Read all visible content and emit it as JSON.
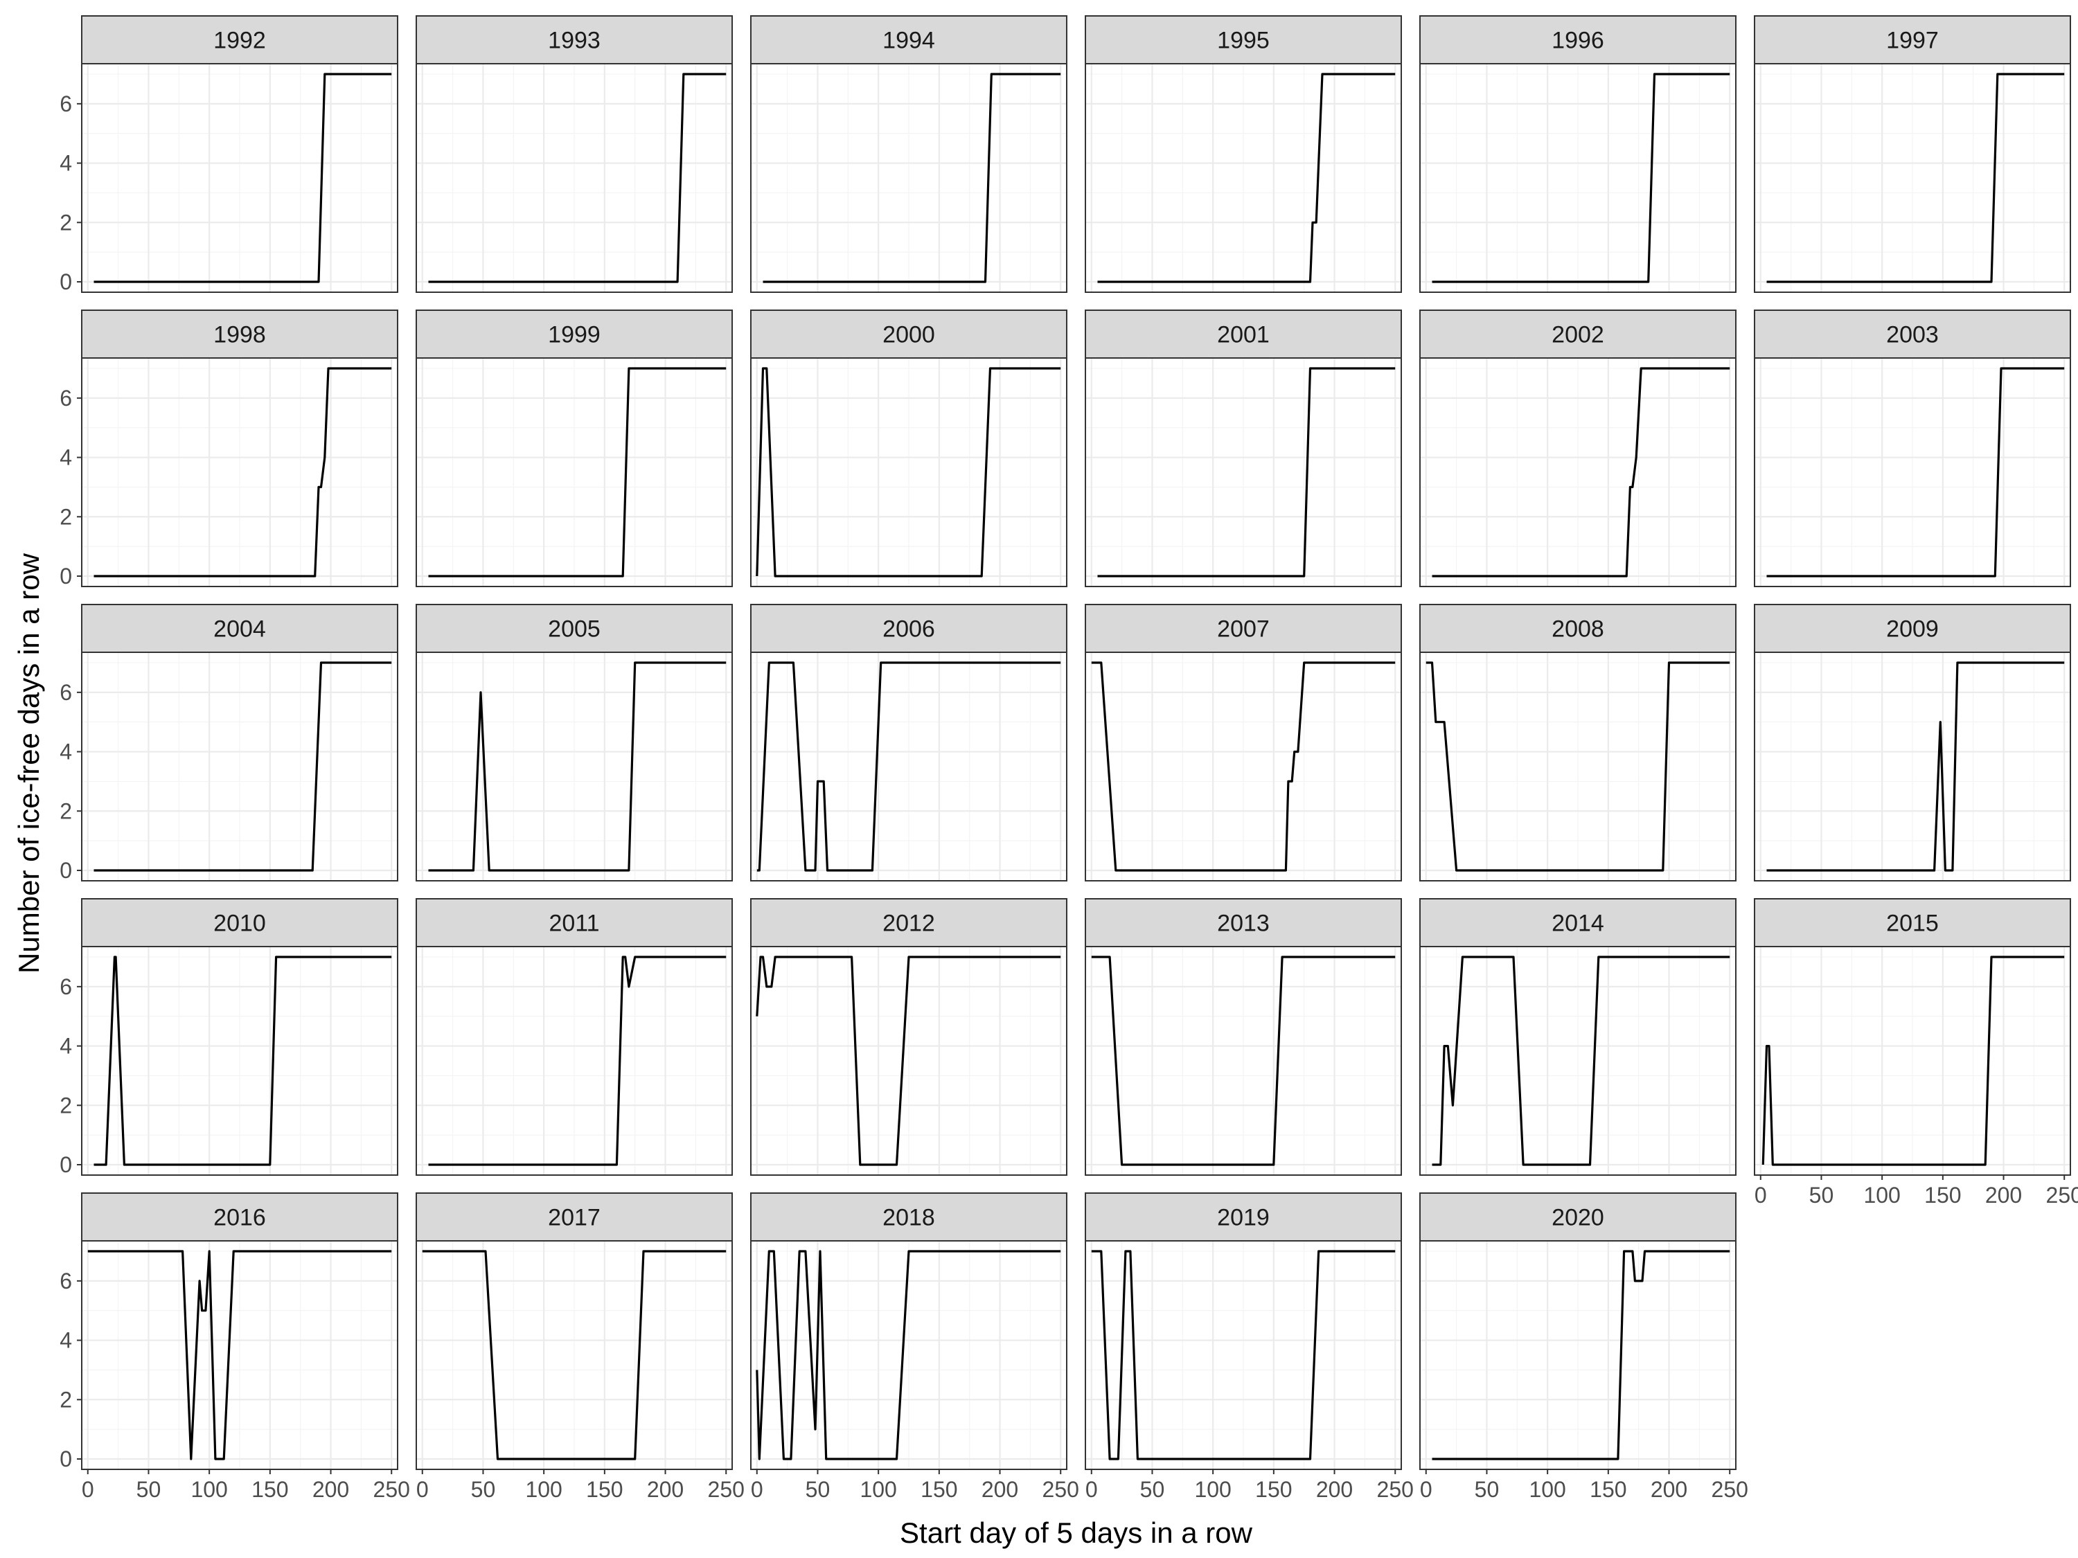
{
  "chart_data": {
    "type": "line",
    "title": "",
    "xlabel": "Start day of 5 days in a row",
    "ylabel": "Number of ice-free days in a row",
    "xlim": [
      -5,
      255
    ],
    "ylim": [
      -0.35,
      7.35
    ],
    "x_ticks": [
      0,
      50,
      100,
      150,
      200,
      250
    ],
    "y_ticks": [
      0,
      2,
      4,
      6
    ],
    "grid": true,
    "line_color": "#000000",
    "panels": [
      {
        "label": "1992",
        "x": [
          5,
          190,
          195,
          250
        ],
        "y": [
          0,
          0,
          7,
          7
        ]
      },
      {
        "label": "1993",
        "x": [
          5,
          210,
          215,
          250
        ],
        "y": [
          0,
          0,
          7,
          7
        ]
      },
      {
        "label": "1994",
        "x": [
          5,
          188,
          193,
          250
        ],
        "y": [
          0,
          0,
          7,
          7
        ]
      },
      {
        "label": "1995",
        "x": [
          5,
          180,
          182,
          185,
          187,
          190,
          250
        ],
        "y": [
          0,
          0,
          2,
          2,
          4,
          7,
          7
        ]
      },
      {
        "label": "1996",
        "x": [
          5,
          183,
          188,
          250
        ],
        "y": [
          0,
          0,
          7,
          7
        ]
      },
      {
        "label": "1997",
        "x": [
          5,
          190,
          195,
          250
        ],
        "y": [
          0,
          0,
          7,
          7
        ]
      },
      {
        "label": "1998",
        "x": [
          5,
          187,
          190,
          192,
          195,
          198,
          250
        ],
        "y": [
          0,
          0,
          3,
          3,
          4,
          7,
          7
        ]
      },
      {
        "label": "1999",
        "x": [
          5,
          165,
          170,
          250
        ],
        "y": [
          0,
          0,
          7,
          7
        ]
      },
      {
        "label": "2000",
        "x": [
          0,
          5,
          8,
          15,
          185,
          192,
          250
        ],
        "y": [
          0,
          7,
          7,
          0,
          0,
          7,
          7
        ]
      },
      {
        "label": "2001",
        "x": [
          5,
          175,
          180,
          250
        ],
        "y": [
          0,
          0,
          7,
          7
        ]
      },
      {
        "label": "2002",
        "x": [
          5,
          165,
          168,
          170,
          173,
          177,
          250
        ],
        "y": [
          0,
          0,
          3,
          3,
          4,
          7,
          7
        ]
      },
      {
        "label": "2003",
        "x": [
          5,
          193,
          198,
          250
        ],
        "y": [
          0,
          0,
          7,
          7
        ]
      },
      {
        "label": "2004",
        "x": [
          5,
          185,
          192,
          250
        ],
        "y": [
          0,
          0,
          7,
          7
        ]
      },
      {
        "label": "2005",
        "x": [
          5,
          42,
          48,
          55,
          170,
          175,
          250
        ],
        "y": [
          0,
          0,
          6,
          0,
          0,
          7,
          7
        ]
      },
      {
        "label": "2006",
        "x": [
          0,
          2,
          10,
          30,
          40,
          48,
          50,
          55,
          58,
          95,
          102,
          250
        ],
        "y": [
          0,
          0,
          7,
          7,
          0,
          0,
          3,
          3,
          0,
          0,
          7,
          7
        ]
      },
      {
        "label": "2007",
        "x": [
          0,
          8,
          20,
          160,
          162,
          165,
          167,
          170,
          175,
          250
        ],
        "y": [
          7,
          7,
          0,
          0,
          3,
          3,
          4,
          4,
          7,
          7
        ]
      },
      {
        "label": "2008",
        "x": [
          0,
          5,
          8,
          15,
          25,
          195,
          200,
          250
        ],
        "y": [
          7,
          7,
          5,
          5,
          0,
          0,
          7,
          7
        ]
      },
      {
        "label": "2009",
        "x": [
          5,
          143,
          148,
          152,
          158,
          162,
          167,
          250
        ],
        "y": [
          0,
          0,
          5,
          0,
          0,
          7,
          7,
          7
        ]
      },
      {
        "label": "2010",
        "x": [
          5,
          15,
          22,
          23,
          30,
          150,
          155,
          250
        ],
        "y": [
          0,
          0,
          7,
          7,
          0,
          0,
          7,
          7
        ]
      },
      {
        "label": "2011",
        "x": [
          5,
          160,
          165,
          167,
          170,
          175,
          250
        ],
        "y": [
          0,
          0,
          7,
          7,
          6,
          7,
          7
        ]
      },
      {
        "label": "2012",
        "x": [
          0,
          3,
          5,
          8,
          12,
          15,
          78,
          85,
          115,
          125,
          250
        ],
        "y": [
          5,
          7,
          7,
          6,
          6,
          7,
          7,
          0,
          0,
          7,
          7
        ]
      },
      {
        "label": "2013",
        "x": [
          0,
          15,
          25,
          150,
          157,
          250
        ],
        "y": [
          7,
          7,
          0,
          0,
          7,
          7
        ]
      },
      {
        "label": "2014",
        "x": [
          5,
          12,
          15,
          18,
          22,
          30,
          72,
          80,
          135,
          142,
          250
        ],
        "y": [
          0,
          0,
          4,
          4,
          2,
          7,
          7,
          0,
          0,
          7,
          7
        ]
      },
      {
        "label": "2015",
        "x": [
          2,
          5,
          7,
          10,
          185,
          190,
          250
        ],
        "y": [
          0,
          4,
          4,
          0,
          0,
          7,
          7
        ]
      },
      {
        "label": "2016",
        "x": [
          0,
          78,
          85,
          92,
          94,
          97,
          100,
          105,
          112,
          120,
          250
        ],
        "y": [
          7,
          7,
          0,
          6,
          5,
          5,
          7,
          0,
          0,
          7,
          7
        ]
      },
      {
        "label": "2017",
        "x": [
          0,
          52,
          62,
          175,
          182,
          250
        ],
        "y": [
          7,
          7,
          0,
          0,
          7,
          7
        ]
      },
      {
        "label": "2018",
        "x": [
          0,
          2,
          10,
          14,
          22,
          28,
          35,
          40,
          48,
          52,
          57,
          65,
          115,
          125,
          250
        ],
        "y": [
          3,
          0,
          7,
          7,
          0,
          0,
          7,
          7,
          1,
          7,
          0,
          0,
          0,
          7,
          7
        ]
      },
      {
        "label": "2019",
        "x": [
          0,
          8,
          15,
          22,
          28,
          32,
          38,
          45,
          180,
          187,
          250
        ],
        "y": [
          7,
          7,
          0,
          0,
          7,
          7,
          0,
          0,
          0,
          7,
          7
        ]
      },
      {
        "label": "2020",
        "x": [
          5,
          158,
          163,
          170,
          172,
          178,
          180,
          250
        ],
        "y": [
          0,
          0,
          7,
          7,
          6,
          6,
          7,
          7
        ]
      }
    ]
  }
}
